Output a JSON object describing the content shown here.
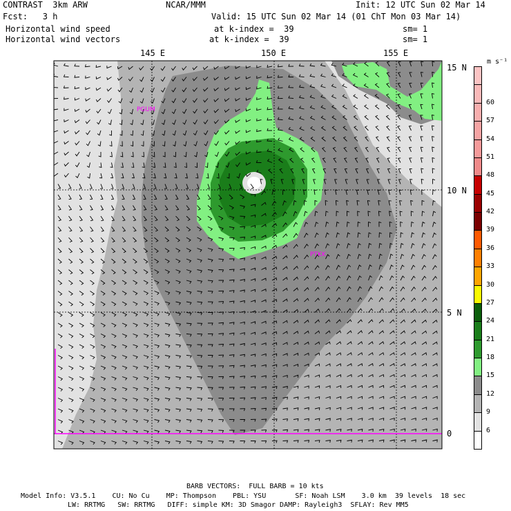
{
  "header": {
    "line1_left": "CONTRAST  3km ARW",
    "line1_mid": "NCAR/MMM",
    "line1_right": "Init: 12 UTC Sun 02 Mar 14",
    "line2_left": "Fcst:   3 h",
    "line2_right": "Valid: 15 UTC Sun 02 Mar 14 (01 ChT Mon 03 Mar 14)",
    "line3_left": "Horizontal wind speed",
    "line3_mid": "at k-index =  39",
    "line3_right": "sm= 1",
    "line4_left": "Horizontal wind vectors",
    "line4_mid": "at k-index =  39",
    "line4_right": "sm= 1"
  },
  "map": {
    "lon_labels": [
      "145 E",
      "150 E",
      "155 E"
    ],
    "lat_labels": [
      "15 N",
      "10 N",
      "5 N",
      "0"
    ],
    "stations": [
      "PGUM",
      "PTKK"
    ],
    "station_color": "#ff00ff",
    "boundary_color": "#ff00ff"
  },
  "colorbar": {
    "unit": "m s⁻¹",
    "labels": [
      "60",
      "57",
      "54",
      "51",
      "48",
      "45",
      "42",
      "39",
      "36",
      "33",
      "30",
      "27",
      "24",
      "21",
      "18",
      "15",
      "12",
      "9",
      "6"
    ],
    "colors": [
      "#ffffff",
      "#e2e2e2",
      "#b4b4b4",
      "#8c8c8c",
      "#82f082",
      "#2e9a2e",
      "#1a7d1a",
      "#0b5e0b",
      "#fafa00",
      "#ffa500",
      "#ff7f00",
      "#ff5a00",
      "#7a0000",
      "#9a0000",
      "#c60000",
      "#f08a8a",
      "#f59a9a",
      "#f6a4a4",
      "#f8aeae",
      "#fab9b9",
      "#fcc4c4"
    ]
  },
  "footer": {
    "barb_note": "BARB VECTORS:  FULL BARB = 10 kts",
    "model_line1": "Model Info: V3.5.1    CU: No Cu    MP: Thompson    PBL: YSU       SF: Noah LSM    3.0 km  39 levels  18 sec",
    "model_line2": "LW: RRTMG   SW: RRTMG   DIFF: simple KM: 3D Smagor DAMP: Rayleigh3  SFLAY: Rev MM5"
  }
}
